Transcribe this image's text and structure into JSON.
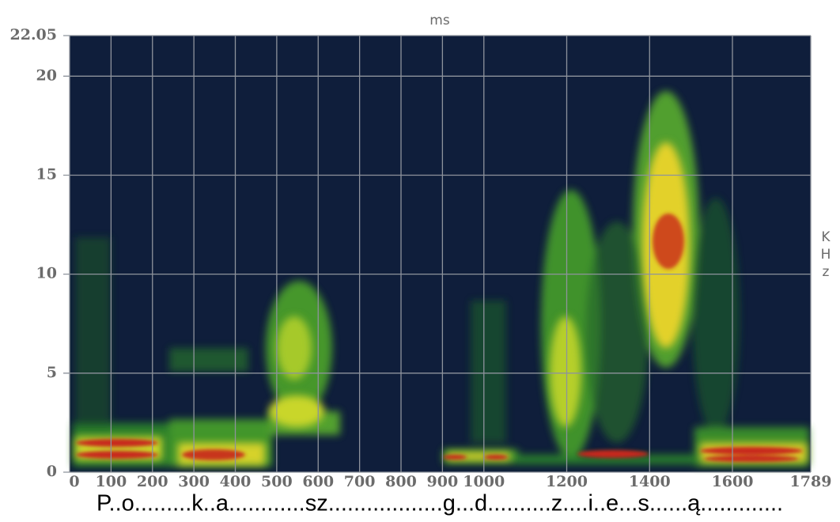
{
  "chart_data": {
    "type": "spectrogram",
    "x_label": "ms",
    "y_label": "KHz",
    "caption": "P..o.........k..a............sz..................g...d..........z....i..e...s......ą.............",
    "xlim": [
      0,
      1789
    ],
    "xticks": [
      0,
      100,
      200,
      300,
      400,
      500,
      600,
      700,
      800,
      900,
      1000,
      1200,
      1400,
      1600,
      1789
    ],
    "ylim": [
      0,
      22.05
    ],
    "yticks": [
      0,
      5,
      10,
      15,
      20,
      22.05
    ],
    "grid": true,
    "background": "#0f1e3b"
  }
}
